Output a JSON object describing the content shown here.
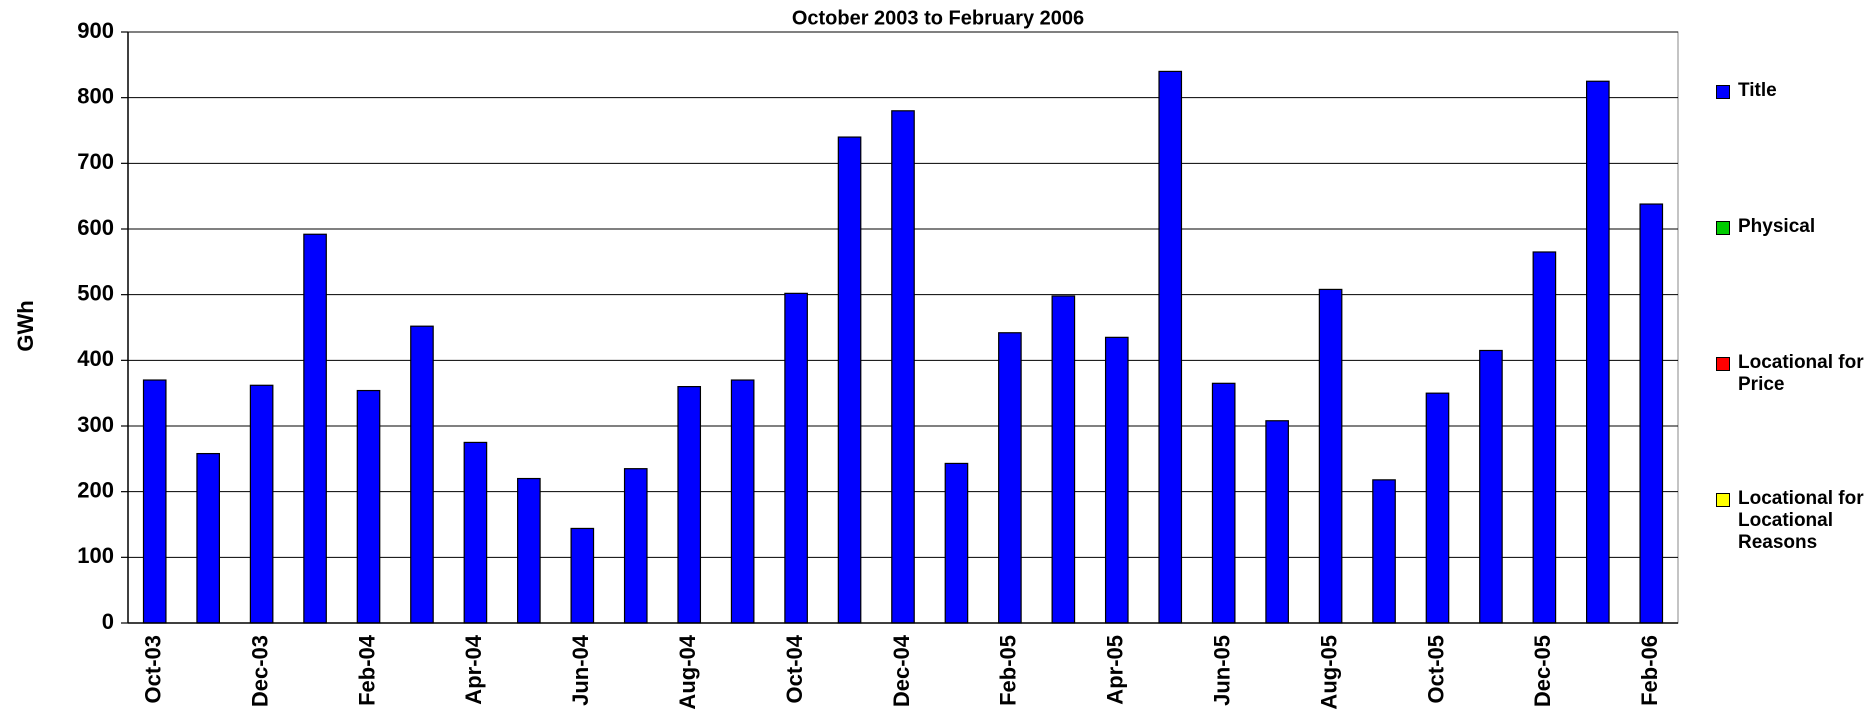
{
  "chart_data": {
    "type": "bar",
    "title": "October 2003 to February 2006",
    "y_label": "GWh",
    "categories": [
      "Oct-03",
      null,
      "Dec-03",
      null,
      "Feb-04",
      null,
      "Apr-04",
      null,
      "Jun-04",
      null,
      "Aug-04",
      null,
      "Oct-04",
      null,
      "Dec-04",
      null,
      "Feb-05",
      null,
      "Apr-05",
      null,
      "Jun-05",
      null,
      "Aug-05",
      null,
      "Oct-05",
      null,
      "Dec-05",
      null,
      "Feb-06"
    ],
    "series": [
      {
        "name": "Title",
        "color": "#0000ff",
        "values": [
          370,
          258,
          362,
          592,
          354,
          452,
          275,
          220,
          144,
          235,
          360,
          370,
          502,
          740,
          780,
          243,
          442,
          498,
          435,
          840,
          365,
          308,
          508,
          218,
          350,
          415,
          565,
          825,
          638
        ]
      },
      {
        "name": "Physical",
        "color": "#00cc00",
        "values": [
          0,
          0,
          0,
          0,
          0,
          0,
          0,
          0,
          0,
          0,
          0,
          0,
          0,
          0,
          0,
          0,
          0,
          0,
          0,
          0,
          0,
          0,
          0,
          0,
          0,
          0,
          0,
          0,
          0
        ]
      },
      {
        "name": "Locational for Price",
        "color": "#ff0000",
        "values": [
          0,
          0,
          0,
          0,
          0,
          0,
          0,
          0,
          0,
          0,
          0,
          0,
          0,
          0,
          0,
          0,
          0,
          0,
          0,
          0,
          0,
          0,
          0,
          0,
          0,
          0,
          0,
          0,
          0
        ]
      },
      {
        "name": "Locational for Locational Reasons",
        "color": "#ffff00",
        "values": [
          0,
          0,
          0,
          0,
          0,
          0,
          0,
          0,
          0,
          0,
          0,
          0,
          0,
          0,
          0,
          0,
          0,
          0,
          0,
          0,
          0,
          0,
          0,
          0,
          0,
          0,
          0,
          0,
          0
        ]
      }
    ],
    "ylim": [
      0,
      900
    ],
    "yticks": [
      0,
      100,
      200,
      300,
      400,
      500,
      600,
      700,
      800,
      900
    ],
    "grid": true,
    "stacked": true,
    "legend": "right"
  }
}
